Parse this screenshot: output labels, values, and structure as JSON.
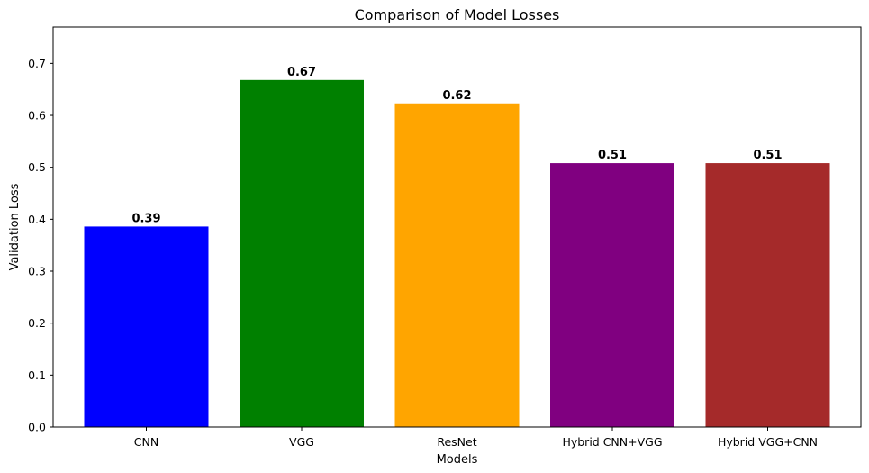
{
  "chart_data": {
    "type": "bar",
    "title": "Comparison of Model Losses",
    "xlabel": "Models",
    "ylabel": "Validation Loss",
    "categories": [
      "CNN",
      "VGG",
      "ResNet",
      "Hybrid CNN+VGG",
      "Hybrid VGG+CNN"
    ],
    "values": [
      0.386,
      0.668,
      0.623,
      0.508,
      0.508
    ],
    "value_labels": [
      "0.39",
      "0.67",
      "0.62",
      "0.51",
      "0.51"
    ],
    "colors": [
      "#0000ff",
      "#008000",
      "#ffa500",
      "#800080",
      "#a52a2a"
    ],
    "ylim": [
      0,
      0.77
    ],
    "yticks": [
      0.0,
      0.1,
      0.2,
      0.3,
      0.4,
      0.5,
      0.6,
      0.7
    ],
    "ytick_labels": [
      "0.0",
      "0.1",
      "0.2",
      "0.3",
      "0.4",
      "0.5",
      "0.6",
      "0.7"
    ],
    "grid": false,
    "legend": "none"
  }
}
